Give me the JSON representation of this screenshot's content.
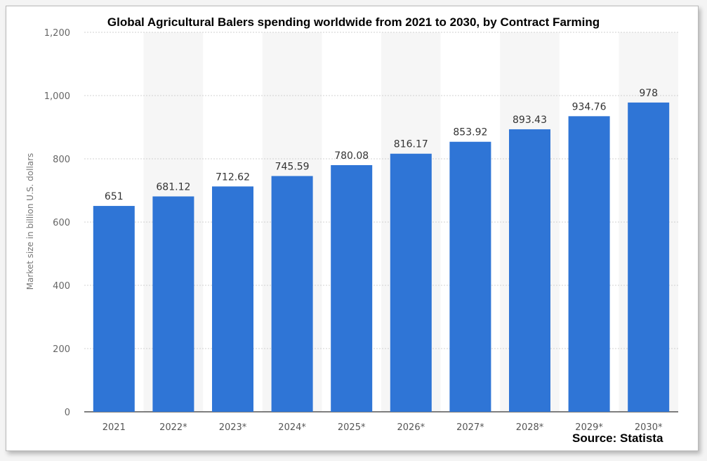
{
  "chart_data": {
    "type": "bar",
    "title": "Global Agricultural Balers spending worldwide from 2021 to 2030, by Contract Farming",
    "ylabel": "Market size in billion U.S. dollars",
    "xlabel": "",
    "categories": [
      "2021",
      "2022*",
      "2023*",
      "2024*",
      "2025*",
      "2026*",
      "2027*",
      "2028*",
      "2029*",
      "2030*"
    ],
    "values": [
      651,
      681.12,
      712.62,
      745.59,
      780.08,
      816.17,
      853.92,
      893.43,
      934.76,
      978
    ],
    "data_labels": [
      "651",
      "681.12",
      "712.62",
      "745.59",
      "780.08",
      "816.17",
      "853.92",
      "893.43",
      "934.76",
      "978"
    ],
    "ylim": [
      0,
      1200
    ],
    "yticks": [
      0,
      200,
      400,
      600,
      800,
      1000,
      1200
    ],
    "ytick_labels": [
      "0",
      "200",
      "400",
      "600",
      "800",
      "1,000",
      "1,200"
    ],
    "grid": true,
    "bar_color": "#2f75d6",
    "source": "Source: Statista"
  }
}
